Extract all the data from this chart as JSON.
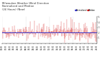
{
  "title": "Milwaukee Weather Wind Direction\nNormalized and Median\n(24 Hours) (New)",
  "background_color": "#ffffff",
  "plot_bg_color": "#ffffff",
  "grid_color": "#aaaaaa",
  "bar_color": "#cc0000",
  "median_color": "#3333cc",
  "ylim": [
    0,
    5
  ],
  "xlim": [
    0,
    288
  ],
  "n_points": 288,
  "median_value": 2.1,
  "title_fontsize": 2.8,
  "tick_fontsize": 1.8,
  "legend_fontsize": 2.0,
  "legend_labels": [
    "Normalized",
    "Median"
  ],
  "legend_colors": [
    "#3333cc",
    "#cc0000"
  ],
  "yticks": [
    1,
    2,
    3,
    4,
    5
  ],
  "n_xticks": 25
}
